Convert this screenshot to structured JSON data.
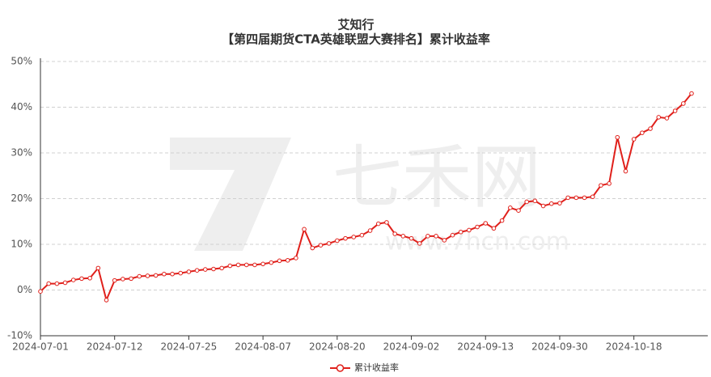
{
  "chart_data": {
    "type": "line",
    "title": "艾知行",
    "subtitle": "【第四届期货CTA英雄联盟大赛排名】累计收益率",
    "watermark": {
      "brand": "七禾网",
      "url": "www.7hcn.com"
    },
    "categories": [
      "2024-07-01",
      null,
      null,
      null,
      null,
      null,
      null,
      null,
      null,
      "2024-07-12",
      null,
      null,
      null,
      null,
      null,
      null,
      null,
      null,
      "2024-07-25",
      null,
      null,
      null,
      null,
      null,
      null,
      null,
      null,
      "2024-08-07",
      null,
      null,
      null,
      null,
      null,
      null,
      null,
      null,
      "2024-08-20",
      null,
      null,
      null,
      null,
      null,
      null,
      null,
      null,
      "2024-09-02",
      null,
      null,
      null,
      null,
      null,
      null,
      null,
      null,
      "2024-09-13",
      null,
      null,
      null,
      null,
      null,
      null,
      null,
      null,
      "2024-09-30",
      null,
      null,
      null,
      null,
      null,
      null,
      null,
      null,
      "2024-10-18",
      null,
      null,
      null,
      null,
      null,
      null,
      null
    ],
    "series": [
      {
        "name": "累计收益率",
        "color": "#e0201b",
        "values": [
          -0.3,
          1.4,
          1.4,
          1.6,
          2.2,
          2.5,
          2.6,
          4.8,
          -2.2,
          2.1,
          2.4,
          2.5,
          3.0,
          3.1,
          3.2,
          3.5,
          3.5,
          3.7,
          4.0,
          4.3,
          4.5,
          4.6,
          4.8,
          5.3,
          5.5,
          5.5,
          5.5,
          5.7,
          6.0,
          6.4,
          6.5,
          7.0,
          13.3,
          9.2,
          9.8,
          10.2,
          10.8,
          11.3,
          11.6,
          12.0,
          13.0,
          14.5,
          14.8,
          12.3,
          11.8,
          11.3,
          10.2,
          11.8,
          11.8,
          10.9,
          12.0,
          12.7,
          13.1,
          13.8,
          14.6,
          13.5,
          15.2,
          18.0,
          17.4,
          19.3,
          19.5,
          18.4,
          18.9,
          19.0,
          20.2,
          20.2,
          20.2,
          20.4,
          22.9,
          23.3,
          33.4,
          26.0,
          33.0,
          34.4,
          35.3,
          37.8,
          37.6,
          39.2,
          40.8,
          43.0
        ]
      }
    ],
    "ylim": [
      -10,
      50
    ],
    "yticks": [
      {
        "value": -10,
        "label": "-10%"
      },
      {
        "value": 0,
        "label": "0%"
      },
      {
        "value": 10,
        "label": "10%"
      },
      {
        "value": 20,
        "label": "20%"
      },
      {
        "value": 30,
        "label": "30%"
      },
      {
        "value": 40,
        "label": "40%"
      },
      {
        "value": 50,
        "label": "50%"
      }
    ],
    "grid": true,
    "legend": "bottom"
  }
}
